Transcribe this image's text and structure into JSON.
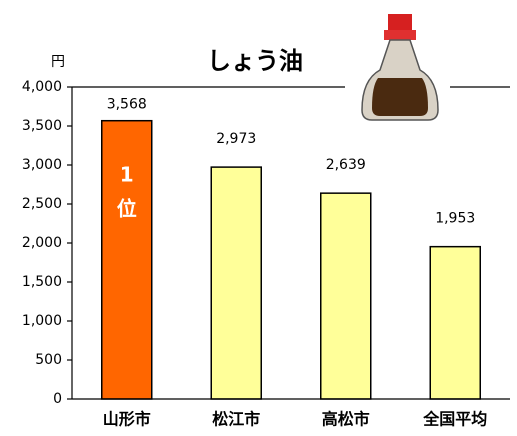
{
  "chart_data": {
    "type": "bar",
    "title": "しょう油",
    "y_unit": "円",
    "categories": [
      "山形市",
      "松江市",
      "高松市",
      "全国平均"
    ],
    "values": [
      3568,
      2973,
      2639,
      1953
    ],
    "value_labels": [
      "3,568",
      "2,973",
      "2,639",
      "1,953"
    ],
    "colors": [
      "#ff6600",
      "#ffff99",
      "#ffff99",
      "#ffff99"
    ],
    "annotations": [
      "1",
      "位"
    ],
    "ylim": [
      0,
      4000
    ],
    "yticks": [
      0,
      500,
      {
        "value": 1000,
        "label": "1,000"
      },
      {
        "value": 1500,
        "label": "1,500"
      },
      {
        "value": 2000,
        "label": "2,000"
      },
      {
        "value": 2500,
        "label": "2,500"
      },
      {
        "value": 3000,
        "label": "3,000"
      },
      {
        "value": 3500,
        "label": "3,500"
      },
      {
        "value": 4000,
        "label": "4,000"
      }
    ],
    "grid": false
  }
}
